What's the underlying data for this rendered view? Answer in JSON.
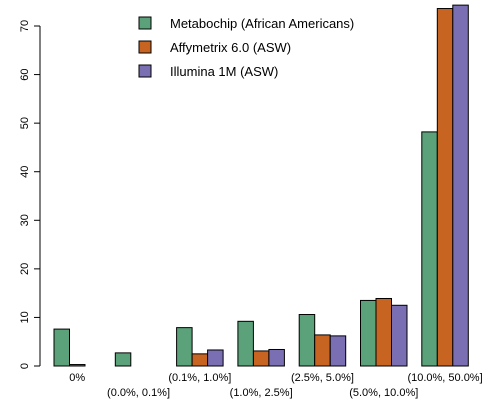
{
  "chart_data": {
    "type": "bar",
    "title": "",
    "xlabel": "",
    "ylabel": "",
    "ylim": [
      0,
      75
    ],
    "yticks": [
      0,
      10,
      20,
      30,
      40,
      50,
      60,
      70
    ],
    "grid": false,
    "legend_position": "top-center",
    "categories": [
      "0%",
      "(0.0%, 0.1%]",
      "(0.1%, 1.0%]",
      "(1.0%, 2.5%]",
      "(2.5%, 5.0%]",
      "(5.0%, 10.0%]",
      "(10.0%, 50.0%]"
    ],
    "series": [
      {
        "name": "Metabochip (African Americans)",
        "color": "#5ba27a",
        "values": [
          7.6,
          2.7,
          7.9,
          9.2,
          10.6,
          13.5,
          48.2
        ]
      },
      {
        "name": "Affymetrix 6.0 (ASW)",
        "color": "#c86421",
        "values": [
          0.3,
          0.0,
          2.5,
          3.1,
          6.4,
          13.9,
          73.6
        ]
      },
      {
        "name": "Illumina 1M (ASW)",
        "color": "#7a6fb3",
        "values": [
          0.0,
          0.0,
          3.3,
          3.4,
          6.2,
          12.5,
          74.3
        ]
      }
    ]
  }
}
